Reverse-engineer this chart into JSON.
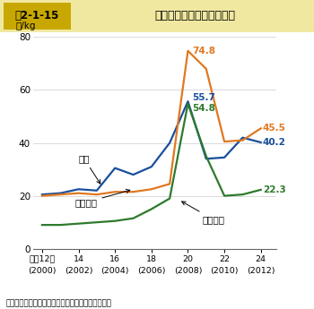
{
  "title_box": "図2-1-15",
  "title_text": "輸入肥料原料の単価の推移",
  "ylabel": "円/kg",
  "years": [
    12,
    13,
    14,
    15,
    16,
    17,
    18,
    19,
    20,
    21,
    22,
    23,
    24
  ],
  "years_tick": [
    12,
    14,
    16,
    18,
    20,
    22,
    24
  ],
  "years_label1": [
    "平成12年",
    "14",
    "16",
    "18",
    "20",
    "22",
    "24"
  ],
  "years_label2": [
    "(2000)",
    "(2002)",
    "(2004)",
    "(2006)",
    "(2008)",
    "(2010)",
    "(2012)"
  ],
  "urea": [
    20.5,
    21.0,
    22.5,
    22.0,
    30.5,
    28.0,
    31.0,
    40.0,
    55.7,
    34.0,
    34.5,
    42.0,
    40.2
  ],
  "potassium": [
    20.0,
    20.5,
    21.0,
    20.5,
    21.5,
    21.5,
    22.5,
    24.5,
    74.8,
    68.0,
    40.5,
    41.0,
    45.5
  ],
  "phosphate": [
    9.0,
    9.0,
    9.5,
    10.0,
    10.5,
    11.5,
    15.0,
    19.0,
    54.8,
    35.0,
    20.0,
    20.5,
    22.3
  ],
  "urea_color": "#1a4f9c",
  "potassium_color": "#e07820",
  "phosphate_color": "#2d7a2d",
  "ylim": [
    0,
    80
  ],
  "yticks": [
    0,
    20,
    40,
    60,
    80
  ],
  "title_bg_outer": "#f0e8a0",
  "title_bg_box": "#d4b800",
  "source": "資料：財務省「貲易統計」を基に農林水産省で作成",
  "label_urea": "尿素",
  "label_potassium": "塩化加里",
  "label_phosphate": "りん鉱石"
}
